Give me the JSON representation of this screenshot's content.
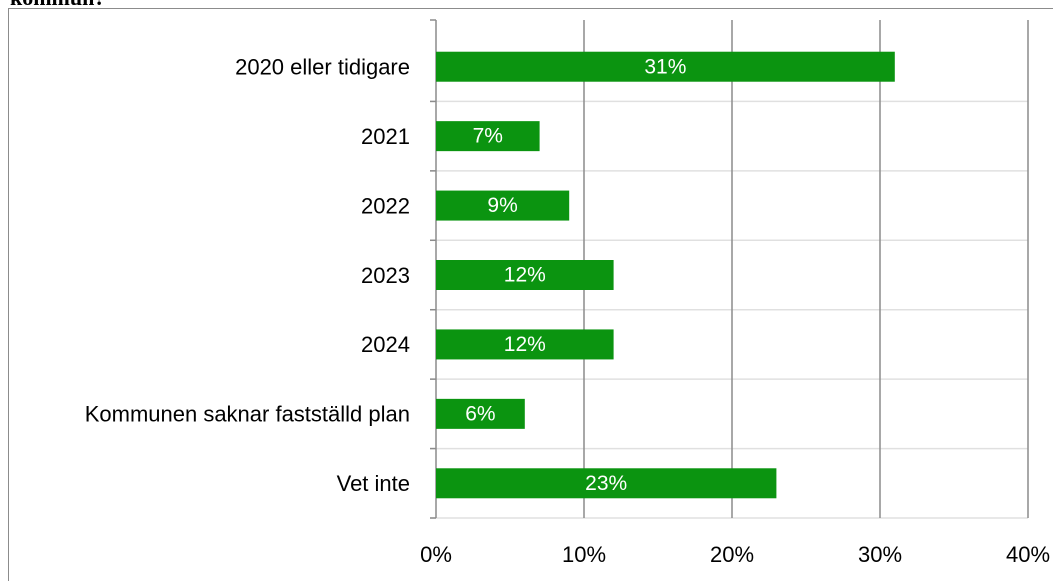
{
  "chart_data": {
    "type": "bar",
    "orientation": "horizontal",
    "title": "kommun?",
    "categories": [
      "2020 eller tidigare",
      "2021",
      "2022",
      "2023",
      "2024",
      "Kommunen saknar fastställd plan",
      "Vet inte"
    ],
    "values": [
      31,
      7,
      9,
      12,
      12,
      6,
      23
    ],
    "value_labels": [
      "31%",
      "7%",
      "9%",
      "12%",
      "12%",
      "6%",
      "23%"
    ],
    "color": "#0b9410",
    "xlim": [
      0,
      40
    ],
    "xticks": [
      {
        "value": 0,
        "label": "0%"
      },
      {
        "value": 10,
        "label": "10%"
      },
      {
        "value": 20,
        "label": "20%"
      },
      {
        "value": 30,
        "label": "30%"
      },
      {
        "value": 40,
        "label": "40%"
      }
    ],
    "grid": true
  }
}
